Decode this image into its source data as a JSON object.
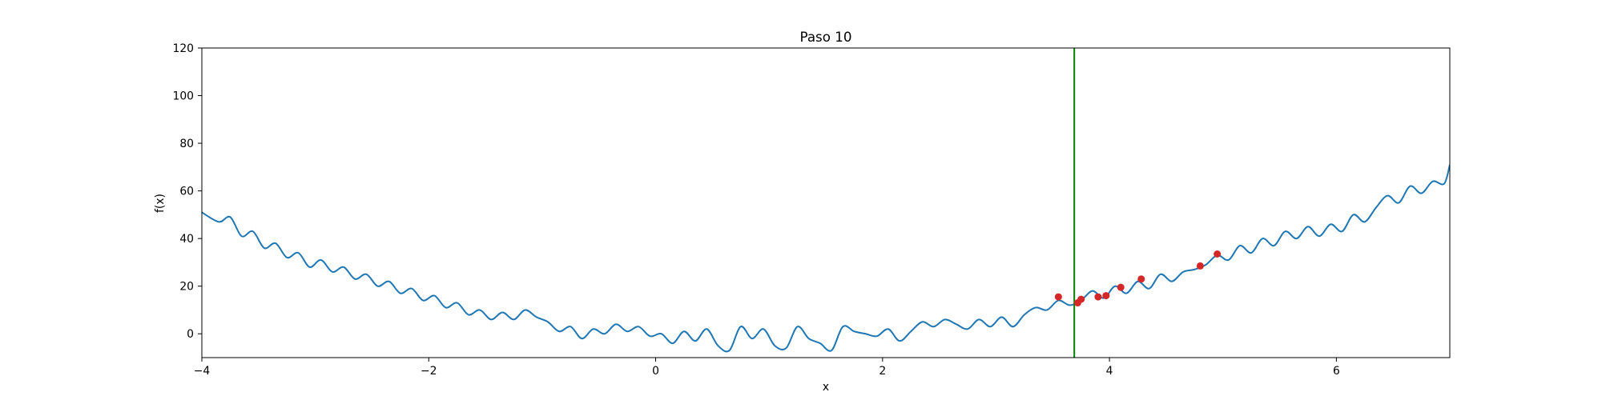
{
  "chart_data": {
    "type": "line",
    "title": "Paso 10",
    "xlabel": "x",
    "ylabel": "f(x)",
    "xlim": [
      -4,
      7
    ],
    "ylim": [
      -10,
      120
    ],
    "x_ticks": [
      -4,
      -2,
      0,
      2,
      4,
      6
    ],
    "x_tick_labels": [
      "−4",
      "−2",
      "0",
      "2",
      "4",
      "6"
    ],
    "y_ticks": [
      0,
      20,
      40,
      60,
      80,
      100,
      120
    ],
    "y_tick_labels": [
      "0",
      "20",
      "40",
      "60",
      "80",
      "100",
      "120"
    ],
    "grid": false,
    "legend": "none",
    "series": [
      {
        "values_desc": "f(x) curve: parabola with sinusoidal ripples",
        "x": [
          -4.0,
          -3.85,
          -3.75,
          -3.65,
          -3.55,
          -3.45,
          -3.35,
          -3.25,
          -3.15,
          -3.05,
          -2.95,
          -2.85,
          -2.75,
          -2.65,
          -2.55,
          -2.45,
          -2.35,
          -2.25,
          -2.15,
          -2.05,
          -1.95,
          -1.85,
          -1.75,
          -1.65,
          -1.55,
          -1.45,
          -1.35,
          -1.25,
          -1.15,
          -1.05,
          -0.95,
          -0.85,
          -0.75,
          -0.65,
          -0.55,
          -0.45,
          -0.35,
          -0.25,
          -0.15,
          -0.05,
          0.05,
          0.15,
          0.25,
          0.35,
          0.45,
          0.55,
          0.65,
          0.75,
          0.85,
          0.95,
          1.05,
          1.15,
          1.25,
          1.35,
          1.45,
          1.55,
          1.65,
          1.75,
          1.85,
          1.95,
          2.05,
          2.15,
          2.25,
          2.35,
          2.45,
          2.55,
          2.65,
          2.75,
          2.85,
          2.95,
          3.05,
          3.15,
          3.25,
          3.35,
          3.45,
          3.55,
          3.65,
          3.75,
          3.85,
          3.95,
          4.05,
          4.15,
          4.25,
          4.35,
          4.45,
          4.55,
          4.65,
          4.75,
          4.85,
          4.95,
          5.05,
          5.15,
          5.25,
          5.35,
          5.45,
          5.55,
          5.65,
          5.75,
          5.85,
          5.95,
          6.05,
          6.15,
          6.25,
          6.35,
          6.45,
          6.55,
          6.65,
          6.75,
          6.85,
          6.95,
          7.0
        ],
        "y": [
          51,
          47,
          49,
          41,
          43,
          36,
          38,
          32,
          34,
          28,
          31,
          26,
          28,
          23,
          25,
          20,
          22,
          17,
          19,
          14,
          16,
          11,
          13,
          8,
          10,
          6,
          9,
          6,
          10,
          7,
          5,
          1,
          3,
          -2,
          2,
          0,
          4,
          1,
          3,
          -1,
          0,
          -4,
          1,
          -3,
          2,
          -5,
          -7,
          3,
          -2,
          2,
          -5,
          -6,
          3,
          -2,
          -4,
          -7,
          3,
          1,
          0,
          -1,
          2,
          -3,
          1,
          5,
          3,
          6,
          4,
          2,
          6,
          3,
          7,
          3,
          8,
          11,
          10,
          14,
          12,
          14,
          18,
          15,
          20,
          17,
          22,
          19,
          25,
          22,
          26,
          27,
          29,
          33,
          31,
          37,
          34,
          40,
          37,
          43,
          40,
          45,
          41,
          46,
          43,
          50,
          47,
          53,
          58,
          55,
          62,
          59,
          64,
          63,
          71
        ]
      }
    ],
    "points": {
      "x": [
        3.55,
        3.72,
        3.75,
        3.9,
        3.97,
        4.1,
        4.28,
        4.8,
        4.95
      ],
      "y": [
        15.5,
        13,
        14.5,
        15.5,
        16,
        19.5,
        23,
        28.5,
        33.5
      ],
      "color": "#d62728"
    },
    "vline": {
      "x": 3.69,
      "color": "#008000"
    },
    "line_color": "#1f77b4",
    "tick_minus": "−"
  }
}
